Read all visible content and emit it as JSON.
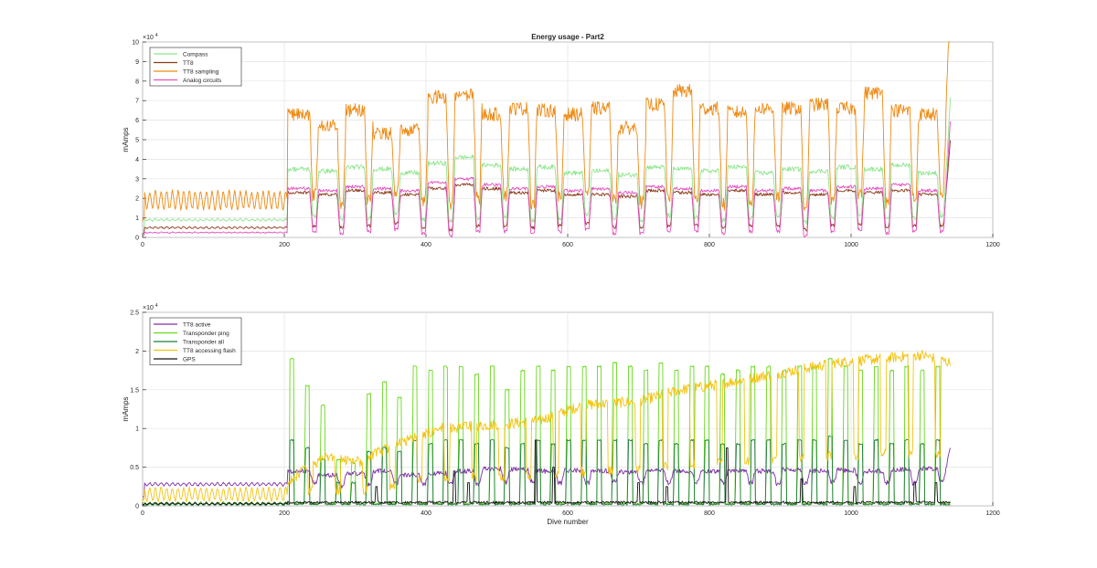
{
  "figure": {
    "background": "#ffffff"
  },
  "chart_data": [
    {
      "type": "line",
      "title": "Energy usage - Part2",
      "xlabel": "",
      "ylabel": "mAmps",
      "exponent_label": "×10",
      "exponent_power": "4",
      "xlim": [
        0,
        1200
      ],
      "ylim": [
        0,
        10
      ],
      "y_scale": 10000,
      "x_ticks": [
        "0",
        "200",
        "400",
        "600",
        "800",
        "1000",
        "1200"
      ],
      "y_ticks": [
        "0",
        "1",
        "2",
        "3",
        "4",
        "5",
        "6",
        "7",
        "8",
        "9",
        "10"
      ],
      "grid": true,
      "legend_position": "top-left",
      "series": [
        {
          "name": "Compass",
          "color": "#8fe58f",
          "pre_level": 0.9,
          "pre_osc": 0.05,
          "pre_period": 8,
          "pre_phase": 0,
          "plateau": [
            3.5,
            3.4,
            3.6,
            3.5,
            3.3,
            3.8,
            4.1,
            3.7,
            3.5,
            3.6,
            3.3,
            3.4,
            3.2,
            3.6,
            3.5,
            3.4,
            3.6,
            3.3,
            3.5,
            3.4,
            3.6,
            3.5,
            3.7,
            3.3
          ],
          "trough": [
            1.1,
            0.9,
            1.0,
            1.2,
            0.9,
            0.8,
            1.0,
            1.1,
            0.9,
            1.0,
            1.2,
            1.0,
            0.9,
            1.1,
            1.0,
            0.9,
            1.0,
            1.1,
            0.8,
            1.0,
            1.2,
            0.9,
            1.0,
            1.1
          ],
          "noise": 0.12
        },
        {
          "name": "TT8",
          "color": "#8b3a1a",
          "pre_level": 0.5,
          "pre_osc": 0.04,
          "pre_period": 8,
          "pre_phase": 0,
          "plateau": [
            2.3,
            2.2,
            2.4,
            2.3,
            2.2,
            2.5,
            2.7,
            2.5,
            2.3,
            2.4,
            2.2,
            2.2,
            2.1,
            2.4,
            2.3,
            2.2,
            2.4,
            2.2,
            2.3,
            2.2,
            2.4,
            2.3,
            2.4,
            2.2
          ],
          "trough": [
            0.6,
            0.5,
            0.6,
            0.7,
            0.5,
            0.4,
            0.6,
            0.6,
            0.5,
            0.6,
            0.7,
            0.5,
            0.5,
            0.6,
            0.6,
            0.5,
            0.6,
            0.6,
            0.4,
            0.6,
            0.7,
            0.5,
            0.6,
            0.6
          ],
          "noise": 0.08
        },
        {
          "name": "TT8 sampling",
          "color": "#ee8a14",
          "pre_level": 1.9,
          "pre_osc": 0.45,
          "pre_period": 8,
          "pre_phase": 0,
          "plateau": [
            6.3,
            5.8,
            6.5,
            5.3,
            5.5,
            7.2,
            7.3,
            6.3,
            6.6,
            6.5,
            6.3,
            6.6,
            5.6,
            6.8,
            7.5,
            6.6,
            6.4,
            6.6,
            6.6,
            6.8,
            6.6,
            7.4,
            6.5,
            6.3
          ],
          "trough": [
            2.2,
            1.8,
            2.0,
            2.4,
            1.9,
            1.6,
            2.0,
            2.2,
            1.8,
            2.0,
            2.3,
            1.9,
            1.8,
            2.1,
            2.0,
            1.7,
            1.9,
            2.1,
            1.6,
            1.9,
            2.3,
            1.8,
            2.0,
            2.1
          ],
          "noise": 0.35
        },
        {
          "name": "Analog circuits",
          "color": "#e54fc0",
          "pre_level": 0.25,
          "pre_osc": 0.02,
          "pre_period": 8,
          "pre_phase": 0,
          "plateau": [
            2.5,
            2.4,
            2.6,
            2.5,
            2.4,
            2.8,
            3.0,
            2.7,
            2.5,
            2.6,
            2.4,
            2.5,
            2.3,
            2.6,
            2.5,
            2.4,
            2.6,
            2.4,
            2.5,
            2.4,
            2.6,
            2.5,
            2.7,
            2.4
          ],
          "trough": [
            0.3,
            0.2,
            0.3,
            0.4,
            0.2,
            0.1,
            0.3,
            0.3,
            0.2,
            0.3,
            0.4,
            0.2,
            0.2,
            0.3,
            0.3,
            0.2,
            0.3,
            0.3,
            0.1,
            0.3,
            0.4,
            0.2,
            0.3,
            0.3
          ],
          "noise": 0.08
        }
      ]
    },
    {
      "type": "line",
      "title": "",
      "xlabel": "Dive number",
      "ylabel": "mAmps",
      "exponent_label": "×10",
      "exponent_power": "4",
      "xlim": [
        0,
        1200
      ],
      "ylim": [
        0,
        2.5
      ],
      "y_scale": 10000,
      "x_ticks": [
        "0",
        "200",
        "400",
        "600",
        "800",
        "1000",
        "1200"
      ],
      "y_ticks": [
        "0",
        "0.5",
        "1",
        "1.5",
        "2",
        "2.5"
      ],
      "grid": true,
      "legend_position": "top-left",
      "series": [
        {
          "name": "TT8 active",
          "color": "#7e2fa8",
          "pre_level": 0.28,
          "pre_osc": 0.02,
          "pre_period": 8,
          "pre_phase": 0,
          "plateau": [
            0.45,
            0.4,
            0.42,
            0.45,
            0.4,
            0.42,
            0.45,
            0.48,
            0.47,
            0.45,
            0.46,
            0.45,
            0.44,
            0.46,
            0.45,
            0.44,
            0.46,
            0.45,
            0.47,
            0.45,
            0.46,
            0.45,
            0.47,
            0.48
          ],
          "trough": [
            0.3,
            0.25,
            0.28,
            0.3,
            0.29,
            0.3,
            0.28,
            0.3,
            0.32,
            0.3,
            0.3,
            0.31,
            0.3,
            0.3,
            0.31,
            0.3,
            0.3,
            0.29,
            0.3,
            0.31,
            0.3,
            0.3,
            0.29,
            0.32
          ],
          "noise": 0.03
        },
        {
          "name": "Transponder ping",
          "color": "#66d91a",
          "pre_level": 0.03,
          "pre_osc": 0.02,
          "pre_period": 8,
          "pre_phase": 0,
          "spikes": [
            1.9,
            1.55,
            1.3,
            0.6,
            0.55,
            1.45,
            1.6,
            1.4,
            1.8,
            1.75,
            1.8,
            1.8,
            1.7,
            1.8,
            1.5,
            1.75,
            1.8,
            1.75,
            1.8,
            1.8,
            1.8,
            1.85,
            1.8,
            1.75,
            1.85,
            1.75,
            1.8,
            1.8,
            1.7,
            1.75,
            1.8,
            1.8,
            1.75,
            1.8,
            1.8,
            1.9,
            1.8,
            1.75,
            1.8,
            1.75,
            1.8,
            1.75,
            1.8,
            1.85
          ],
          "noise": 0.02
        },
        {
          "name": "Transponder all",
          "color": "#1e7f3a",
          "pre_level": 0.02,
          "pre_osc": 0.01,
          "pre_period": 8,
          "pre_phase": 0,
          "spikes": [
            0.85,
            0.75,
            0.6,
            0.3,
            0.3,
            0.7,
            0.75,
            0.7,
            0.85,
            0.8,
            0.85,
            0.85,
            0.8,
            0.85,
            0.75,
            0.8,
            0.85,
            0.8,
            0.85,
            0.85,
            0.85,
            0.85,
            0.85,
            0.8,
            0.85,
            0.8,
            0.85,
            0.85,
            0.8,
            0.8,
            0.85,
            0.85,
            0.8,
            0.85,
            0.85,
            0.9,
            0.85,
            0.8,
            0.85,
            0.8,
            0.85,
            0.8,
            0.85,
            0.85
          ],
          "noise": 0.02
        },
        {
          "name": "TT8 accessing flash",
          "color": "#f3c30d",
          "pre_level": 0.15,
          "pre_osc": 0.08,
          "pre_period": 8,
          "pre_phase": 0,
          "ramp": [
            [
              200,
              0.28
            ],
            [
              260,
              0.65
            ],
            [
              300,
              0.55
            ],
            [
              360,
              0.8
            ],
            [
              420,
              1.0
            ],
            [
              500,
              1.05
            ],
            [
              560,
              1.1
            ],
            [
              620,
              1.3
            ],
            [
              700,
              1.35
            ],
            [
              760,
              1.5
            ],
            [
              800,
              1.55
            ],
            [
              860,
              1.65
            ],
            [
              920,
              1.75
            ],
            [
              980,
              1.85
            ],
            [
              1040,
              1.9
            ],
            [
              1100,
              1.95
            ],
            [
              1140,
              1.85
            ]
          ],
          "noise": 0.07
        },
        {
          "name": "GPS",
          "color": "#111111",
          "pre_level": 0.03,
          "pre_osc": 0.01,
          "pre_period": 8,
          "pre_phase": 0,
          "spikes_sparse": [
            [
              330,
              0.25
            ],
            [
              440,
              0.45
            ],
            [
              460,
              0.3
            ],
            [
              555,
              0.85
            ],
            [
              580,
              0.5
            ],
            [
              700,
              0.3
            ],
            [
              740,
              0.25
            ],
            [
              825,
              0.75
            ],
            [
              930,
              0.35
            ],
            [
              1005,
              0.25
            ],
            [
              1090,
              0.3
            ],
            [
              1120,
              0.3
            ]
          ],
          "noise": 0.03
        }
      ]
    }
  ]
}
